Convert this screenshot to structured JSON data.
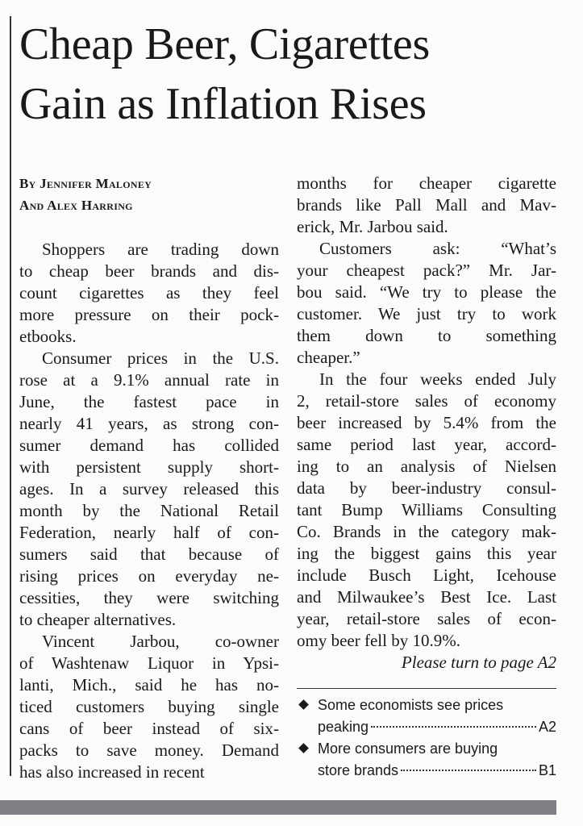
{
  "headline": [
    "Cheap Beer, Cigarettes",
    "Gain as Inflation Rises"
  ],
  "byline": [
    "By Jennifer Maloney",
    "And Alex Harring"
  ],
  "columns": [
    {
      "paragraphs": [
        {
          "lines": [
            "Shoppers are trading down",
            "to cheap beer brands and dis-",
            "count cigarettes as they feel",
            "more pressure on their pock-",
            "etbooks."
          ]
        },
        {
          "lines": [
            "Consumer prices in the U.S.",
            "rose at a 9.1% annual rate in",
            "June, the fastest pace in",
            "nearly 41 years, as strong con-",
            "sumer demand has collided",
            "with persistent supply short-",
            "ages. In a survey released this",
            "month by the National Retail",
            "Federation, nearly half of con-",
            "sumers said that because of",
            "rising prices on everyday ne-",
            "cessities, they were switching",
            "to cheaper alternatives."
          ]
        },
        {
          "lines": [
            "Vincent Jarbou, co-owner",
            "of Washtenaw Liquor in Ypsi-",
            "lanti, Mich., said he has no-",
            "ticed customers buying single",
            "cans of beer instead of six-",
            "packs to save money. Demand",
            "has also increased in recent"
          ]
        }
      ]
    },
    {
      "paragraphs": [
        {
          "lines": [
            "months for cheaper cigarette",
            "brands like Pall Mall and Mav-",
            "erick, Mr. Jarbou said."
          ]
        },
        {
          "lines": [
            "Customers ask: “What’s",
            "your cheapest pack?” Mr. Jar-",
            "bou said. “We try to please the",
            "customer. We just try to work",
            "them down to something",
            "cheaper.”"
          ]
        },
        {
          "lines": [
            "In the four weeks ended July",
            "2, retail-store sales of economy",
            "beer increased by 5.4% from the",
            "same period last year, accord-",
            "ing to an analysis of Nielsen",
            "data by beer-industry consul-",
            "tant Bump Williams Consulting",
            "Co. Brands in the category mak-",
            "ing the biggest gains this year",
            "include Busch Light, Icehouse",
            "and Milwaukee’s Best Ice. Last",
            "year, retail-store sales of econ-",
            "omy beer fell by 10.9%."
          ]
        }
      ]
    }
  ],
  "continuation": "Please turn to page A2",
  "teasers": [
    {
      "lines": [
        "Some economists see prices",
        "peaking"
      ],
      "page": "A2"
    },
    {
      "lines": [
        "More consumers are buying",
        "store brands"
      ],
      "page": "B1"
    }
  ]
}
